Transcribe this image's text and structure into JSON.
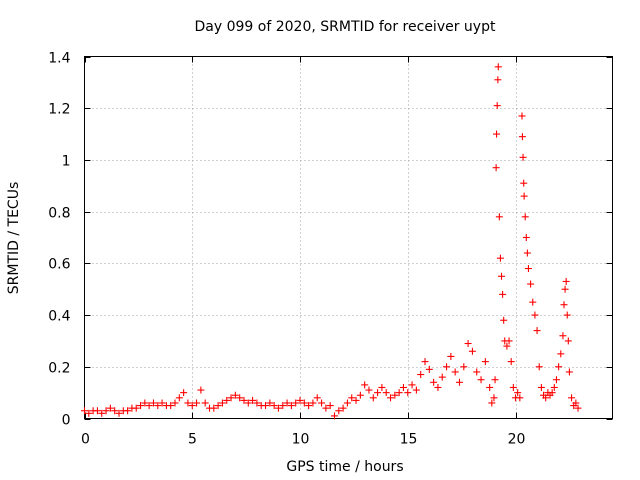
{
  "chart_data": {
    "type": "scatter",
    "title": "Day 099 of 2020, SRMTID for receiver uypt",
    "xlabel": "GPS time / hours",
    "ylabel": "SRMTID / TECUs",
    "xlim": [
      0,
      24.5
    ],
    "ylim": [
      0,
      1.4
    ],
    "xticks": [
      0,
      5,
      10,
      15,
      20
    ],
    "xtick_labels": [
      "0",
      "5",
      "10",
      "15",
      "20"
    ],
    "yticks": [
      0,
      0.2,
      0.4,
      0.6,
      0.8,
      1.0,
      1.2,
      1.4
    ],
    "ytick_labels": [
      "0",
      "0.2",
      "0.4",
      "0.6",
      "0.8",
      "1",
      "1.2",
      "1.4"
    ],
    "grid": true,
    "marker": "+",
    "color": "#ff0000",
    "series": [
      {
        "name": "SRMTID",
        "points": [
          [
            0.0,
            0.03
          ],
          [
            0.2,
            0.02
          ],
          [
            0.4,
            0.03
          ],
          [
            0.6,
            0.03
          ],
          [
            0.8,
            0.02
          ],
          [
            1.0,
            0.03
          ],
          [
            1.2,
            0.04
          ],
          [
            1.4,
            0.03
          ],
          [
            1.6,
            0.02
          ],
          [
            1.8,
            0.03
          ],
          [
            2.0,
            0.03
          ],
          [
            2.2,
            0.04
          ],
          [
            2.4,
            0.04
          ],
          [
            2.6,
            0.05
          ],
          [
            2.8,
            0.06
          ],
          [
            3.0,
            0.05
          ],
          [
            3.2,
            0.06
          ],
          [
            3.4,
            0.05
          ],
          [
            3.6,
            0.06
          ],
          [
            3.8,
            0.05
          ],
          [
            4.0,
            0.05
          ],
          [
            4.2,
            0.06
          ],
          [
            4.4,
            0.08
          ],
          [
            4.6,
            0.1
          ],
          [
            4.8,
            0.06
          ],
          [
            5.0,
            0.05
          ],
          [
            5.2,
            0.06
          ],
          [
            5.4,
            0.11
          ],
          [
            5.6,
            0.06
          ],
          [
            5.8,
            0.04
          ],
          [
            6.0,
            0.04
          ],
          [
            6.2,
            0.05
          ],
          [
            6.4,
            0.06
          ],
          [
            6.6,
            0.07
          ],
          [
            6.8,
            0.08
          ],
          [
            7.0,
            0.09
          ],
          [
            7.2,
            0.08
          ],
          [
            7.4,
            0.07
          ],
          [
            7.6,
            0.06
          ],
          [
            7.8,
            0.07
          ],
          [
            8.0,
            0.06
          ],
          [
            8.2,
            0.05
          ],
          [
            8.4,
            0.05
          ],
          [
            8.6,
            0.06
          ],
          [
            8.8,
            0.05
          ],
          [
            9.0,
            0.04
          ],
          [
            9.2,
            0.05
          ],
          [
            9.4,
            0.06
          ],
          [
            9.6,
            0.05
          ],
          [
            9.8,
            0.06
          ],
          [
            10.0,
            0.07
          ],
          [
            10.2,
            0.06
          ],
          [
            10.4,
            0.05
          ],
          [
            10.6,
            0.06
          ],
          [
            10.8,
            0.08
          ],
          [
            11.0,
            0.06
          ],
          [
            11.2,
            0.04
          ],
          [
            11.4,
            0.05
          ],
          [
            11.6,
            0.01
          ],
          [
            11.8,
            0.03
          ],
          [
            12.0,
            0.04
          ],
          [
            12.2,
            0.06
          ],
          [
            12.4,
            0.08
          ],
          [
            12.6,
            0.07
          ],
          [
            12.8,
            0.09
          ],
          [
            13.0,
            0.13
          ],
          [
            13.2,
            0.11
          ],
          [
            13.4,
            0.08
          ],
          [
            13.6,
            0.1
          ],
          [
            13.8,
            0.12
          ],
          [
            14.0,
            0.1
          ],
          [
            14.2,
            0.08
          ],
          [
            14.4,
            0.09
          ],
          [
            14.6,
            0.1
          ],
          [
            14.8,
            0.12
          ],
          [
            15.0,
            0.1
          ],
          [
            15.2,
            0.13
          ],
          [
            15.4,
            0.11
          ],
          [
            15.6,
            0.17
          ],
          [
            15.8,
            0.22
          ],
          [
            16.0,
            0.19
          ],
          [
            16.2,
            0.14
          ],
          [
            16.4,
            0.12
          ],
          [
            16.6,
            0.16
          ],
          [
            16.8,
            0.2
          ],
          [
            17.0,
            0.24
          ],
          [
            17.2,
            0.18
          ],
          [
            17.4,
            0.14
          ],
          [
            17.6,
            0.2
          ],
          [
            17.8,
            0.29
          ],
          [
            18.0,
            0.26
          ],
          [
            18.2,
            0.18
          ],
          [
            18.4,
            0.15
          ],
          [
            18.6,
            0.22
          ],
          [
            18.8,
            0.12
          ],
          [
            18.9,
            0.06
          ],
          [
            19.0,
            0.08
          ],
          [
            19.05,
            0.15
          ],
          [
            19.1,
            0.97
          ],
          [
            19.12,
            1.1
          ],
          [
            19.15,
            1.21
          ],
          [
            19.18,
            1.31
          ],
          [
            19.2,
            1.36
          ],
          [
            19.25,
            0.78
          ],
          [
            19.3,
            0.62
          ],
          [
            19.35,
            0.55
          ],
          [
            19.4,
            0.48
          ],
          [
            19.45,
            0.38
          ],
          [
            19.5,
            0.3
          ],
          [
            19.6,
            0.28
          ],
          [
            19.7,
            0.3
          ],
          [
            19.8,
            0.22
          ],
          [
            19.9,
            0.12
          ],
          [
            20.0,
            0.08
          ],
          [
            20.1,
            0.1
          ],
          [
            20.2,
            0.08
          ],
          [
            20.3,
            1.17
          ],
          [
            20.32,
            1.09
          ],
          [
            20.35,
            1.01
          ],
          [
            20.38,
            0.91
          ],
          [
            20.4,
            0.86
          ],
          [
            20.45,
            0.78
          ],
          [
            20.5,
            0.7
          ],
          [
            20.55,
            0.64
          ],
          [
            20.6,
            0.58
          ],
          [
            20.7,
            0.52
          ],
          [
            20.8,
            0.45
          ],
          [
            20.9,
            0.4
          ],
          [
            21.0,
            0.34
          ],
          [
            21.1,
            0.2
          ],
          [
            21.2,
            0.12
          ],
          [
            21.3,
            0.09
          ],
          [
            21.4,
            0.08
          ],
          [
            21.5,
            0.1
          ],
          [
            21.6,
            0.09
          ],
          [
            21.7,
            0.1
          ],
          [
            21.8,
            0.12
          ],
          [
            21.9,
            0.15
          ],
          [
            22.0,
            0.2
          ],
          [
            22.1,
            0.25
          ],
          [
            22.2,
            0.32
          ],
          [
            22.25,
            0.44
          ],
          [
            22.3,
            0.5
          ],
          [
            22.35,
            0.53
          ],
          [
            22.4,
            0.4
          ],
          [
            22.45,
            0.3
          ],
          [
            22.5,
            0.18
          ],
          [
            22.6,
            0.08
          ],
          [
            22.7,
            0.05
          ],
          [
            22.8,
            0.06
          ],
          [
            22.9,
            0.04
          ]
        ]
      }
    ]
  }
}
